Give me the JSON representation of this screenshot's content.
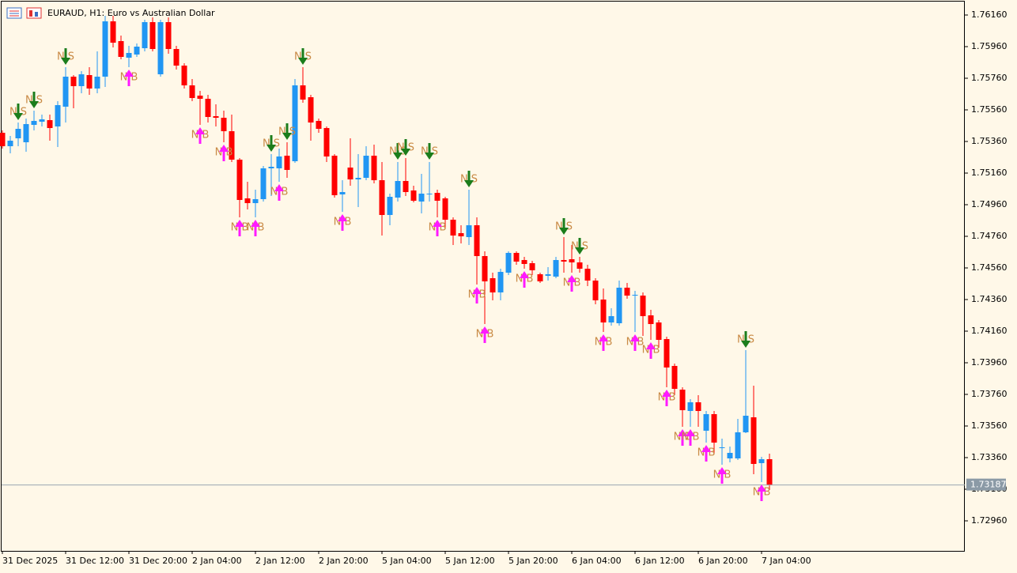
{
  "chart_data": {
    "type": "candlestick",
    "title": "EURAUD, H1:  Euro vs Australian Dollar",
    "categories": [
      "31 Dec 2025",
      null,
      null,
      null,
      null,
      null,
      null,
      null,
      "31 Dec 12:00",
      null,
      null,
      null,
      null,
      null,
      null,
      null,
      "31 Dec 20:00",
      null,
      null,
      null,
      null,
      null,
      null,
      null,
      "2 Jan 04:00",
      null,
      null,
      null,
      null,
      null,
      null,
      null,
      "2 Jan 12:00",
      null,
      null,
      null,
      null,
      null,
      null,
      null,
      "2 Jan 20:00",
      null,
      null,
      null,
      null,
      null,
      null,
      null,
      "5 Jan 04:00",
      null,
      null,
      null,
      null,
      null,
      null,
      null,
      "5 Jan 12:00",
      null,
      null,
      null,
      null,
      null,
      null,
      null,
      "5 Jan 20:00",
      null,
      null,
      null,
      null,
      null,
      null,
      null,
      "6 Jan 04:00",
      null,
      null,
      null,
      null,
      null,
      null,
      null,
      "6 Jan 12:00",
      null,
      null,
      null,
      null,
      null,
      null,
      null,
      "6 Jan 20:00",
      null,
      null,
      null,
      null,
      null,
      null,
      null,
      "7 Jan 04:00",
      null
    ],
    "open": [
      1.75415,
      1.7533,
      1.7538,
      1.75355,
      1.75465,
      1.75485,
      1.75495,
      1.75455,
      1.7558,
      1.7577,
      1.7571,
      1.7578,
      1.75695,
      1.7577,
      1.7612,
      1.75995,
      1.7589,
      1.7591,
      1.7595,
      1.76115,
      1.75785,
      1.76115,
      1.75945,
      1.7584,
      1.75715,
      1.7565,
      1.7563,
      1.7552,
      1.7551,
      1.75425,
      1.75245,
      1.75,
      1.7497,
      1.74995,
      1.7519,
      1.7519,
      1.7527,
      1.75235,
      1.75715,
      1.7564,
      1.7549,
      1.75445,
      1.7527,
      1.75025,
      1.75195,
      1.7512,
      1.7513,
      1.7527,
      1.75115,
      1.74895,
      1.75005,
      1.7511,
      1.7505,
      1.7498,
      1.75025,
      1.75035,
      1.75,
      1.74865,
      1.7478,
      1.74755,
      1.7483,
      1.74635,
      1.74495,
      1.74405,
      1.7453,
      1.74655,
      1.7461,
      1.7459,
      1.7452,
      1.7451,
      1.74505,
      1.7461,
      1.74615,
      1.74595,
      1.74555,
      1.7448,
      1.7436,
      1.74215,
      1.7421,
      1.74435,
      1.74385,
      1.74385,
      1.7426,
      1.74215,
      1.7411,
      1.7394,
      1.7379,
      1.73655,
      1.7371,
      1.7353,
      1.73635,
      1.7342,
      1.73355,
      1.73355,
      1.7352,
      1.73615,
      1.73325,
      1.7335
    ],
    "high": [
      1.7543,
      1.75395,
      1.7548,
      1.75505,
      1.75555,
      1.7553,
      1.7553,
      1.75615,
      1.7583,
      1.7578,
      1.75805,
      1.7583,
      1.7593,
      1.76155,
      1.76155,
      1.7603,
      1.75965,
      1.7598,
      1.7613,
      1.76145,
      1.7613,
      1.76145,
      1.75965,
      1.75855,
      1.75755,
      1.7568,
      1.75655,
      1.75595,
      1.75555,
      1.7553,
      1.75255,
      1.75105,
      1.75055,
      1.75205,
      1.7528,
      1.75315,
      1.75355,
      1.75755,
      1.7583,
      1.75655,
      1.75505,
      1.75455,
      1.7528,
      1.75115,
      1.7538,
      1.7528,
      1.7533,
      1.7534,
      1.7523,
      1.7503,
      1.7523,
      1.75255,
      1.7508,
      1.75155,
      1.7523,
      1.75055,
      1.7501,
      1.7488,
      1.7483,
      1.75055,
      1.7488,
      1.74665,
      1.7453,
      1.74555,
      1.74665,
      1.74665,
      1.7463,
      1.74605,
      1.7453,
      1.74565,
      1.7463,
      1.74755,
      1.74705,
      1.7463,
      1.7458,
      1.74495,
      1.7443,
      1.74305,
      1.7448,
      1.74465,
      1.74415,
      1.74405,
      1.74295,
      1.7423,
      1.74125,
      1.73955,
      1.73805,
      1.7373,
      1.73755,
      1.73655,
      1.73655,
      1.7348,
      1.7343,
      1.73605,
      1.7404,
      1.73815,
      1.73365,
      1.73385
    ],
    "low": [
      1.75315,
      1.75285,
      1.7533,
      1.75295,
      1.7543,
      1.75455,
      1.75365,
      1.75325,
      1.7548,
      1.7557,
      1.75665,
      1.75655,
      1.75665,
      1.75705,
      1.75955,
      1.7588,
      1.7583,
      1.75895,
      1.7593,
      1.7593,
      1.7577,
      1.75915,
      1.75815,
      1.75695,
      1.75615,
      1.75465,
      1.7548,
      1.75455,
      1.75355,
      1.7523,
      1.7488,
      1.7493,
      1.7488,
      1.7498,
      1.75015,
      1.75105,
      1.7513,
      1.75225,
      1.75605,
      1.75365,
      1.75415,
      1.7523,
      1.75005,
      1.74915,
      1.7508,
      1.74945,
      1.75115,
      1.75095,
      1.74765,
      1.7483,
      1.7498,
      1.75015,
      1.74975,
      1.74905,
      1.7498,
      1.7488,
      1.74805,
      1.74705,
      1.74715,
      1.74705,
      1.74455,
      1.74205,
      1.74355,
      1.74355,
      1.74515,
      1.7458,
      1.74555,
      1.74515,
      1.74465,
      1.7448,
      1.74495,
      1.7453,
      1.7453,
      1.7453,
      1.74445,
      1.7433,
      1.74155,
      1.74195,
      1.74195,
      1.74365,
      1.74155,
      1.7413,
      1.74105,
      1.74055,
      1.73805,
      1.73755,
      1.73555,
      1.73555,
      1.73555,
      1.73455,
      1.7338,
      1.73315,
      1.7333,
      1.73345,
      1.73515,
      1.73255,
      1.73205,
      1.73155
    ],
    "close": [
      1.7533,
      1.75365,
      1.7544,
      1.7547,
      1.7549,
      1.755,
      1.75445,
      1.7559,
      1.7577,
      1.7571,
      1.75785,
      1.75695,
      1.7577,
      1.7612,
      1.75985,
      1.75895,
      1.7592,
      1.7596,
      1.76115,
      1.75945,
      1.76115,
      1.75945,
      1.7584,
      1.75715,
      1.75635,
      1.7563,
      1.75515,
      1.7551,
      1.75425,
      1.75245,
      1.7499,
      1.7497,
      1.74995,
      1.7519,
      1.752,
      1.75265,
      1.7518,
      1.75715,
      1.75625,
      1.7548,
      1.7544,
      1.75265,
      1.7502,
      1.7504,
      1.7512,
      1.7513,
      1.7527,
      1.75115,
      1.74895,
      1.7501,
      1.7511,
      1.7504,
      1.74985,
      1.7503,
      1.7503,
      1.74985,
      1.74865,
      1.74765,
      1.7476,
      1.7483,
      1.74635,
      1.74475,
      1.74405,
      1.74535,
      1.74655,
      1.746,
      1.74585,
      1.74545,
      1.74475,
      1.7452,
      1.7461,
      1.746,
      1.74595,
      1.74555,
      1.7448,
      1.74355,
      1.74215,
      1.74255,
      1.74435,
      1.74385,
      1.7439,
      1.74255,
      1.74205,
      1.74105,
      1.7393,
      1.73795,
      1.7366,
      1.7371,
      1.73655,
      1.73635,
      1.73455,
      1.73425,
      1.7339,
      1.7352,
      1.73625,
      1.7332,
      1.7335,
      1.73187
    ],
    "up_color": "#2196f3",
    "down_color": "#ff0000",
    "ylim": [
      1.7277,
      1.76255
    ],
    "yticks": [
      {
        "value": 1.7616,
        "label": "1.76160"
      },
      {
        "value": 1.7596,
        "label": "1.75960"
      },
      {
        "value": 1.7576,
        "label": "1.75760"
      },
      {
        "value": 1.7556,
        "label": "1.75560"
      },
      {
        "value": 1.7536,
        "label": "1.75360"
      },
      {
        "value": 1.7516,
        "label": "1.75160"
      },
      {
        "value": 1.7496,
        "label": "1.74960"
      },
      {
        "value": 1.7476,
        "label": "1.74760"
      },
      {
        "value": 1.7456,
        "label": "1.74560"
      },
      {
        "value": 1.7436,
        "label": "1.74360"
      },
      {
        "value": 1.7416,
        "label": "1.74160"
      },
      {
        "value": 1.7396,
        "label": "1.73960"
      },
      {
        "value": 1.7376,
        "label": "1.73760"
      },
      {
        "value": 1.7356,
        "label": "1.73560"
      },
      {
        "value": 1.7336,
        "label": "1.73360"
      },
      {
        "value": 1.7316,
        "label": "1.73160"
      },
      {
        "value": 1.7296,
        "label": "1.72960"
      }
    ],
    "last_price": 1.73187,
    "signals": [
      {
        "label": "N S",
        "color": "#1b7d1b",
        "position": "above",
        "indices": [
          2,
          4,
          8,
          34,
          36,
          38,
          50,
          51,
          54,
          59,
          71,
          73,
          94
        ]
      },
      {
        "label": "N B",
        "color": "#ff1aff",
        "position": "below",
        "indices": [
          16,
          25,
          28,
          30,
          32,
          35,
          43,
          55,
          60,
          61,
          66,
          72,
          76,
          80,
          82,
          84,
          86,
          87,
          89,
          91,
          96
        ]
      }
    ]
  }
}
